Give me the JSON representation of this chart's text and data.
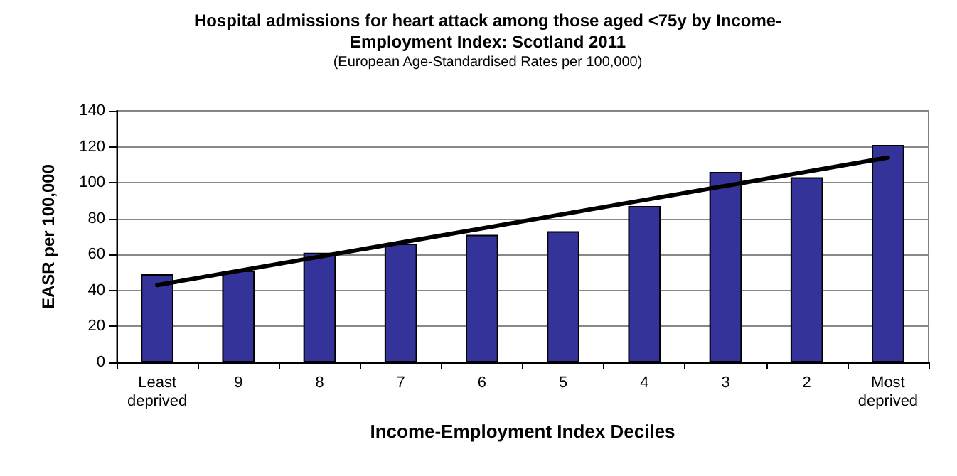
{
  "chart_data": {
    "type": "bar",
    "title": "Hospital admissions for heart attack among those aged <75y by Income-\nEmployment Index: Scotland 2011",
    "subtitle": "(European Age-Standardised Rates per 100,000)",
    "xlabel": "Income-Employment Index Deciles",
    "ylabel": "EASR per 100,000",
    "categories": [
      "Least\ndeprived",
      "9",
      "8",
      "7",
      "6",
      "5",
      "4",
      "3",
      "2",
      "Most\ndeprived"
    ],
    "series": [
      {
        "color": "#333399",
        "values": [
          49,
          51,
          61,
          66,
          71,
          73,
          87,
          106,
          103,
          121
        ]
      },
      {
        "type": "line",
        "color": "#000000",
        "x": [
          "Least\ndeprived",
          "Most\ndeprived"
        ],
        "values": [
          43,
          114
        ],
        "marker": "none"
      }
    ],
    "ylim": [
      0,
      140
    ],
    "yticks": [
      0,
      20,
      40,
      60,
      80,
      100,
      120,
      140
    ],
    "grid": "y"
  }
}
